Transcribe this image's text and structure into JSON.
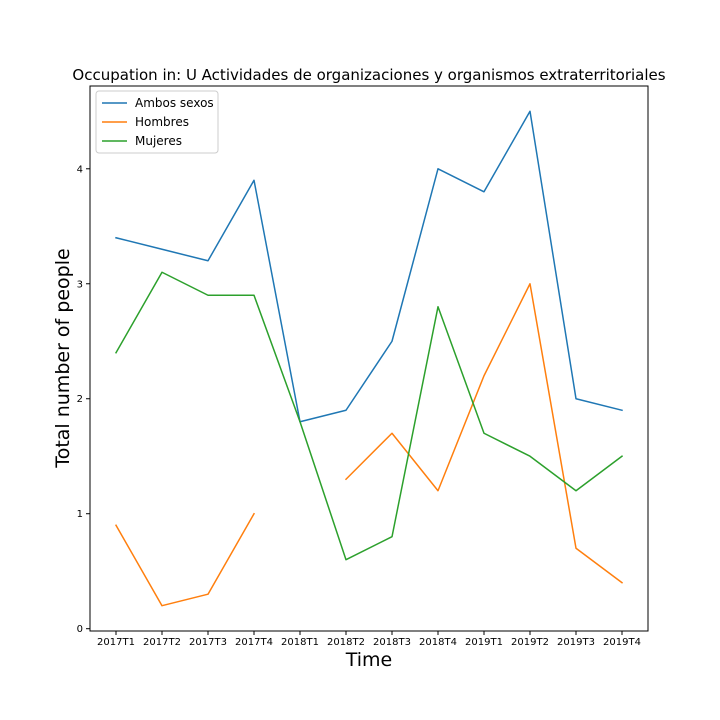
{
  "chart_data": {
    "type": "line",
    "title": "Occupation in: U Actividades de organizaciones y organismos extraterritoriales",
    "xlabel": "Time",
    "ylabel": "Total number of people",
    "categories": [
      "2017T1",
      "2017T2",
      "2017T3",
      "2017T4",
      "2018T1",
      "2018T2",
      "2018T3",
      "2018T4",
      "2019T1",
      "2019T2",
      "2019T3",
      "2019T4"
    ],
    "yticks": [
      0,
      1,
      2,
      3,
      4
    ],
    "ylim": [
      -0.02,
      4.72
    ],
    "grid": false,
    "legend_position": "top-left",
    "series": [
      {
        "name": "Ambos sexos",
        "color": "#1f77b4",
        "values": [
          3.4,
          3.3,
          3.2,
          3.9,
          1.8,
          1.9,
          2.5,
          4.0,
          3.8,
          4.5,
          2.0,
          1.9
        ]
      },
      {
        "name": "Hombres",
        "color": "#ff7f0e",
        "values": [
          0.9,
          0.2,
          0.3,
          1.0,
          null,
          1.3,
          1.7,
          1.2,
          2.2,
          3.0,
          0.7,
          0.4
        ]
      },
      {
        "name": "Mujeres",
        "color": "#2ca02c",
        "values": [
          2.4,
          3.1,
          2.9,
          2.9,
          1.8,
          0.6,
          0.8,
          2.8,
          1.7,
          1.5,
          1.2,
          1.5
        ]
      }
    ]
  }
}
